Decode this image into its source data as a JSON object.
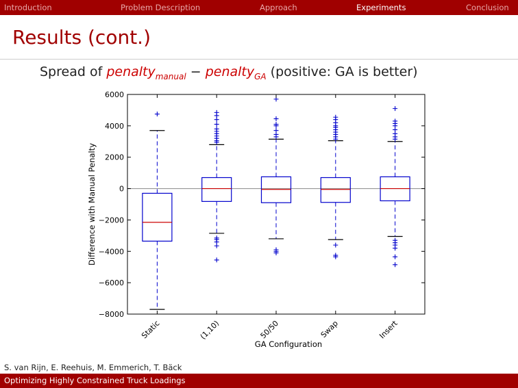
{
  "nav": {
    "items": [
      "Introduction",
      "Problem Description",
      "Approach",
      "Experiments",
      "Conclusion"
    ],
    "active": "Experiments"
  },
  "frame": {
    "title": "Results (cont.)"
  },
  "subtitle": {
    "prefix": "Spread of ",
    "term1": "penalty",
    "term1_sub": "manual",
    "operator": " − ",
    "term2": "penalty",
    "term2_sub": "GA",
    "suffix": " (positive: GA is better)"
  },
  "chart_data": {
    "type": "box",
    "xlabel": "GA Configuration",
    "ylabel": "Difference with Manual Penalty",
    "ylim": [
      -8000,
      6000
    ],
    "yticks": [
      -8000,
      -6000,
      -4000,
      -2000,
      0,
      2000,
      4000,
      6000
    ],
    "ytick_labels": [
      "−8000",
      "−6000",
      "−4000",
      "−2000",
      "0",
      "2000",
      "4000",
      "6000"
    ],
    "zero_line": true,
    "categories": [
      "Static",
      "(1,10)",
      "50/50",
      "Swap",
      "Insert"
    ],
    "boxes": [
      {
        "q1": -3350,
        "median": -2150,
        "q3": -300,
        "whisker_low": -7700,
        "whisker_high": 3700,
        "outliers": [
          4750
        ]
      },
      {
        "q1": -820,
        "median": 0,
        "q3": 700,
        "whisker_low": -2850,
        "whisker_high": 2800,
        "outliers": [
          4850,
          4650,
          4400,
          4100,
          3800,
          3650,
          3500,
          3350,
          3200,
          3050,
          2950,
          -3150,
          -3250,
          -3400,
          -3650,
          -4550
        ]
      },
      {
        "q1": -900,
        "median": -50,
        "q3": 750,
        "whisker_low": -3200,
        "whisker_high": 3150,
        "outliers": [
          5700,
          4450,
          4100,
          4000,
          3700,
          3450,
          3300,
          -3900,
          -4000,
          -4100
        ]
      },
      {
        "q1": -880,
        "median": -50,
        "q3": 700,
        "whisker_low": -3250,
        "whisker_high": 3050,
        "outliers": [
          4550,
          4400,
          4200,
          4000,
          3900,
          3750,
          3600,
          3450,
          3300,
          3150,
          -3600,
          -4250,
          -4350
        ]
      },
      {
        "q1": -780,
        "median": 0,
        "q3": 750,
        "whisker_low": -3050,
        "whisker_high": 3000,
        "outliers": [
          5100,
          4300,
          4150,
          4000,
          3750,
          3500,
          3300,
          3150,
          -3300,
          -3450,
          -3600,
          -3800,
          -4350,
          -4850
        ]
      }
    ],
    "colors": {
      "box": "#0000cc",
      "median": "#cc0000",
      "cap": "#000000",
      "zero": "#888888"
    }
  },
  "footer": {
    "authors": "S. van Rijn, E. Reehuis, M. Emmerich, T. Bäck",
    "title": "Optimizing Highly Constrained Truck Loadings"
  }
}
